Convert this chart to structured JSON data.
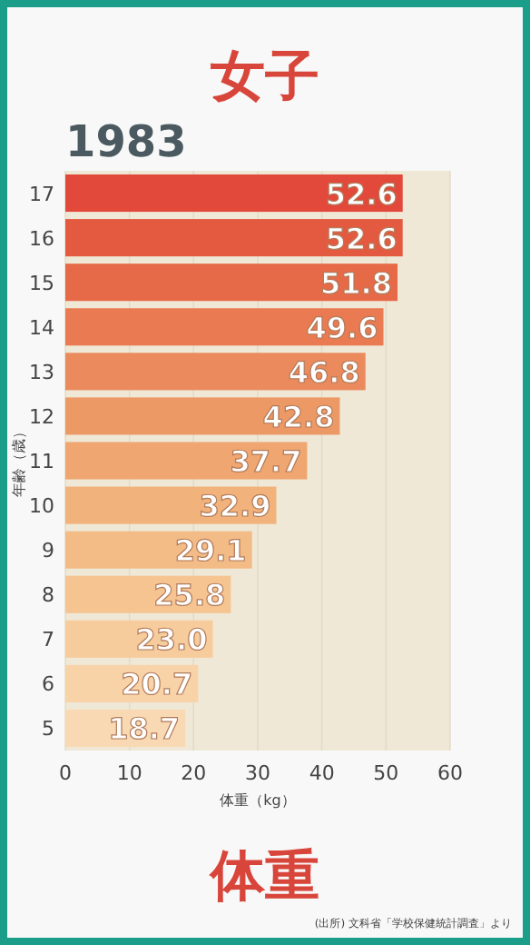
{
  "chart_data": {
    "type": "bar",
    "orientation": "horizontal",
    "title": "女子",
    "subtitle": "1983",
    "xlabel": "体重（kg）",
    "ylabel": "年齢（歳）",
    "categories": [
      "17",
      "16",
      "15",
      "14",
      "13",
      "12",
      "11",
      "10",
      "9",
      "8",
      "7",
      "6",
      "5"
    ],
    "values": [
      52.6,
      52.6,
      51.8,
      49.6,
      46.8,
      42.8,
      37.7,
      32.9,
      29.1,
      25.8,
      23.0,
      20.7,
      18.7
    ],
    "value_labels": [
      "52.6",
      "52.6",
      "51.8",
      "49.6",
      "46.8",
      "42.8",
      "37.7",
      "32.9",
      "29.1",
      "25.8",
      "23.0",
      "20.7",
      "18.7"
    ],
    "colors": [
      "#e2493a",
      "#e45a41",
      "#e66a48",
      "#e97a52",
      "#eb8a5c",
      "#ed9966",
      "#efa670",
      "#f1b27b",
      "#f3bb86",
      "#f5c491",
      "#f7cc9c",
      "#f8d3a8",
      "#f9d9b3"
    ],
    "xlim": [
      0,
      60
    ],
    "xticks": [
      0,
      10,
      20,
      30,
      40,
      50,
      60
    ],
    "grid": "x",
    "annotations": [
      "体重",
      "(出所) 文科省「学校保健統計調査」より"
    ]
  }
}
